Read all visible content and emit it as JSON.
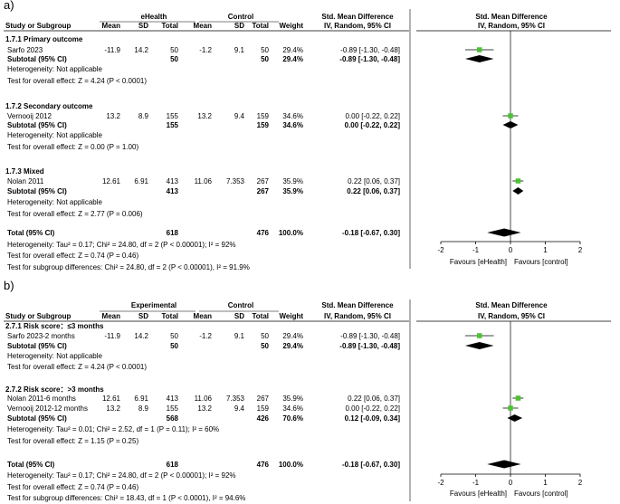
{
  "panels": [
    {
      "label": "a)",
      "headers": {
        "study": "Study or Subgroup",
        "group1": "eHealth",
        "group2": "Control",
        "mean": "Mean",
        "sd": "SD",
        "total": "Total",
        "weight": "Weight",
        "effect_title": "Std. Mean Difference",
        "effect_sub": "IV, Random, 95% CI"
      },
      "subgroups": [
        {
          "title": "1.7.1 Primary outcome",
          "studies": [
            {
              "name": "Sarfo 2023",
              "m1": "-11.9",
              "sd1": "14.2",
              "n1": "50",
              "m2": "-1.2",
              "sd2": "9.1",
              "n2": "50",
              "weight": "29.4%",
              "ci": "-0.89 [-1.30, -0.48]"
            }
          ],
          "subtotal": {
            "label": "Subtotal (95% CI)",
            "n1": "50",
            "n2": "50",
            "weight": "29.4%",
            "ci": "-0.89 [-1.30, -0.48]"
          },
          "notes": [
            "Heterogeneity: Not applicable",
            "Test for overall effect: Z = 4.24 (P < 0.0001)"
          ]
        },
        {
          "title": "1.7.2 Secondary outcome",
          "studies": [
            {
              "name": "Vernooij 2012",
              "m1": "13.2",
              "sd1": "8.9",
              "n1": "155",
              "m2": "13.2",
              "sd2": "9.4",
              "n2": "159",
              "weight": "34.6%",
              "ci": "0.00 [-0.22, 0.22]"
            }
          ],
          "subtotal": {
            "label": "Subtotal (95% CI)",
            "n1": "155",
            "n2": "159",
            "weight": "34.6%",
            "ci": "0.00 [-0.22, 0.22]"
          },
          "notes": [
            "Heterogeneity: Not applicable",
            "Test for overall effect: Z = 0.00 (P = 1.00)"
          ]
        },
        {
          "title": "1.7.3 Mixed",
          "studies": [
            {
              "name": "Nolan 2011",
              "m1": "12.61",
              "sd1": "6.91",
              "n1": "413",
              "m2": "11.06",
              "sd2": "7.353",
              "n2": "267",
              "weight": "35.9%",
              "ci": "0.22 [0.06, 0.37]"
            }
          ],
          "subtotal": {
            "label": "Subtotal (95% CI)",
            "n1": "413",
            "n2": "267",
            "weight": "35.9%",
            "ci": "0.22 [0.06, 0.37]"
          },
          "notes": [
            "Heterogeneity: Not applicable",
            "Test for overall effect: Z = 2.77 (P = 0.006)"
          ]
        }
      ],
      "total": {
        "label": "Total (95% CI)",
        "n1": "618",
        "n2": "476",
        "weight": "100.0%",
        "ci": "-0.18 [-0.67, 0.30]"
      },
      "footer": [
        "Heterogeneity: Tau² = 0.17; Chi² = 24.80, df = 2 (P < 0.00001); I² = 92%",
        "Test for overall effect: Z = 0.74 (P = 0.46)",
        "Test for subgroup differences: Chi² = 24.80, df = 2 (P < 0.00001), I² = 91.9%"
      ],
      "axis": {
        "ticks": [
          "-2",
          "-1",
          "0",
          "1",
          "2"
        ],
        "favours_left": "Favours [eHealth]",
        "favours_right": "Favours [control]"
      }
    },
    {
      "label": "b)",
      "headers": {
        "study": "Study or Subgroup",
        "group1": "Experimental",
        "group2": "Control",
        "mean": "Mean",
        "sd": "SD",
        "total": "Total",
        "weight": "Weight",
        "effect_title": "Std. Mean Difference",
        "effect_sub": "IV, Random, 95% CI"
      },
      "subgroups": [
        {
          "title": "2.7.1 Risk score：≤3 months",
          "studies": [
            {
              "name": "Sarfo 2023-2 months",
              "m1": "-11.9",
              "sd1": "14.2",
              "n1": "50",
              "m2": "-1.2",
              "sd2": "9.1",
              "n2": "50",
              "weight": "29.4%",
              "ci": "-0.89 [-1.30, -0.48]"
            }
          ],
          "subtotal": {
            "label": "Subtotal (95% CI)",
            "n1": "50",
            "n2": "50",
            "weight": "29.4%",
            "ci": "-0.89 [-1.30, -0.48]"
          },
          "notes": [
            "Heterogeneity: Not applicable",
            "Test for overall effect: Z = 4.24 (P < 0.0001)"
          ]
        },
        {
          "title": "2.7.2 Risk score：>3 months",
          "studies": [
            {
              "name": "Nolan 2011-6 months",
              "m1": "12.61",
              "sd1": "6.91",
              "n1": "413",
              "m2": "11.06",
              "sd2": "7.353",
              "n2": "267",
              "weight": "35.9%",
              "ci": "0.22 [0.06, 0.37]"
            },
            {
              "name": "Vernooij 2012-12 months",
              "m1": "13.2",
              "sd1": "8.9",
              "n1": "155",
              "m2": "13.2",
              "sd2": "9.4",
              "n2": "159",
              "weight": "34.6%",
              "ci": "0.00 [-0.22, 0.22]"
            }
          ],
          "subtotal": {
            "label": "Subtotal (95% CI)",
            "n1": "568",
            "n2": "426",
            "weight": "70.6%",
            "ci": "0.12 [-0.09, 0.34]"
          },
          "notes": [
            "Heterogeneity: Tau² = 0.01; Chi² = 2.52, df = 1 (P = 0.11); I² = 60%",
            "Test for overall effect: Z = 1.15 (P = 0.25)"
          ]
        }
      ],
      "total": {
        "label": "Total (95% CI)",
        "n1": "618",
        "n2": "476",
        "weight": "100.0%",
        "ci": "-0.18 [-0.67, 0.30]"
      },
      "footer": [
        "Heterogeneity: Tau² = 0.17; Chi² = 24.80, df = 2 (P < 0.00001); I² = 92%",
        "Test for overall effect: Z = 0.74 (P = 0.46)",
        "Test for subgroup differences: Chi² = 18.43, df = 1 (P < 0.0001), I² = 94.6%"
      ],
      "axis": {
        "ticks": [
          "-2",
          "-1",
          "0",
          "1",
          "2"
        ],
        "favours_left": "Favours [eHealth]",
        "favours_right": "Favours [control]"
      }
    }
  ],
  "chart_data": [
    {
      "type": "forest",
      "title": "a)",
      "xlabel": "Std. Mean Difference, IV, Random, 95% CI",
      "xlim": [
        -2,
        2
      ],
      "studies": [
        {
          "name": "Sarfo 2023",
          "smd": -0.89,
          "lo": -1.3,
          "hi": -0.48,
          "weight": 29.4
        },
        {
          "name": "Vernooij 2012",
          "smd": 0.0,
          "lo": -0.22,
          "hi": 0.22,
          "weight": 34.6
        },
        {
          "name": "Nolan 2011",
          "smd": 0.22,
          "lo": 0.06,
          "hi": 0.37,
          "weight": 35.9
        }
      ],
      "subtotals": [
        {
          "name": "Primary outcome",
          "smd": -0.89,
          "lo": -1.3,
          "hi": -0.48
        },
        {
          "name": "Secondary outcome",
          "smd": 0.0,
          "lo": -0.22,
          "hi": 0.22
        },
        {
          "name": "Mixed",
          "smd": 0.22,
          "lo": 0.06,
          "hi": 0.37
        }
      ],
      "overall": {
        "smd": -0.18,
        "lo": -0.67,
        "hi": 0.3
      },
      "colors": {
        "marker": "#4cc234",
        "diamond": "#000000"
      }
    },
    {
      "type": "forest",
      "title": "b)",
      "xlabel": "Std. Mean Difference, IV, Random, 95% CI",
      "xlim": [
        -2,
        2
      ],
      "studies": [
        {
          "name": "Sarfo 2023-2 months",
          "smd": -0.89,
          "lo": -1.3,
          "hi": -0.48,
          "weight": 29.4
        },
        {
          "name": "Nolan 2011-6 months",
          "smd": 0.22,
          "lo": 0.06,
          "hi": 0.37,
          "weight": 35.9
        },
        {
          "name": "Vernooij 2012-12 months",
          "smd": 0.0,
          "lo": -0.22,
          "hi": 0.22,
          "weight": 34.6
        }
      ],
      "subtotals": [
        {
          "name": "≤3 months",
          "smd": -0.89,
          "lo": -1.3,
          "hi": -0.48
        },
        {
          "name": ">3 months",
          "smd": 0.12,
          "lo": -0.09,
          "hi": 0.34
        }
      ],
      "overall": {
        "smd": -0.18,
        "lo": -0.67,
        "hi": 0.3
      },
      "colors": {
        "marker": "#4cc234",
        "diamond": "#000000"
      }
    }
  ]
}
